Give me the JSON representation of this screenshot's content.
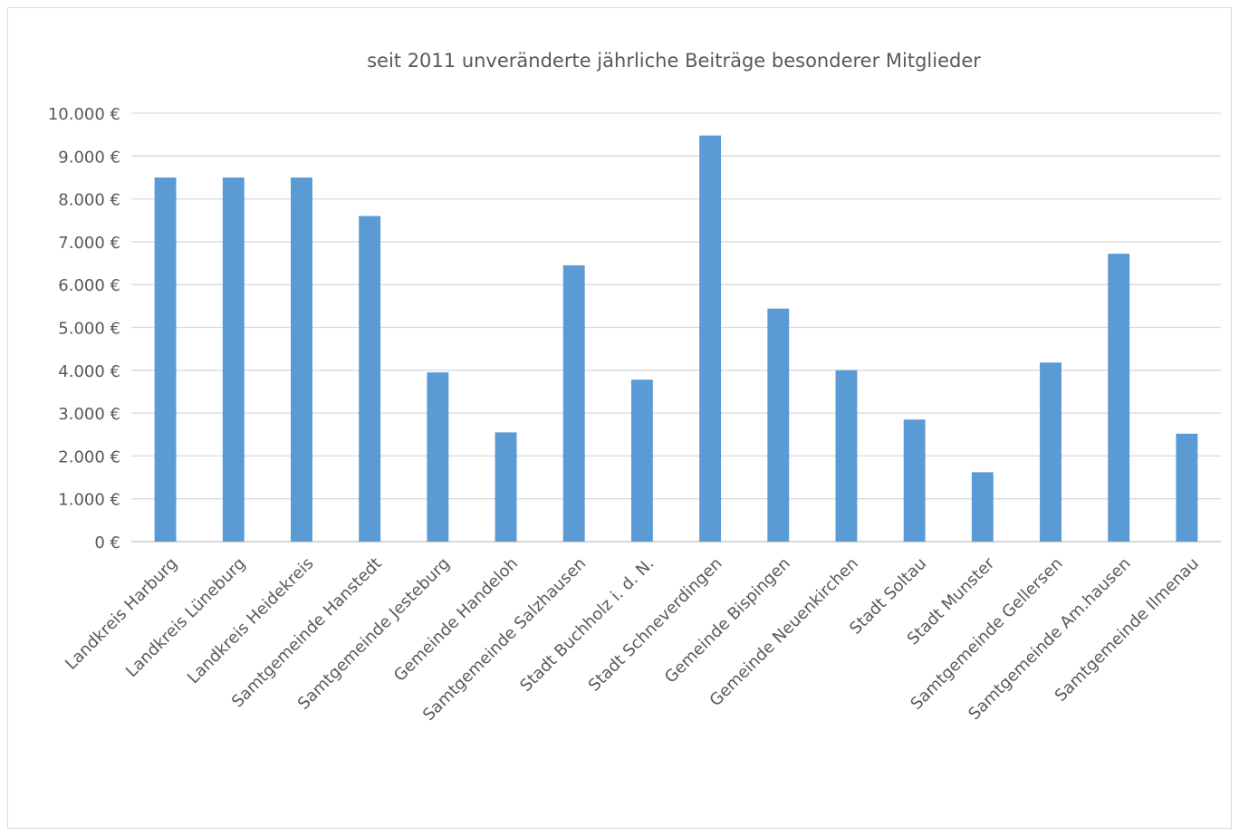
{
  "chart_data": {
    "type": "bar",
    "title": "seit 2011 unveränderte jährliche Beiträge besonderer Mitglieder",
    "xlabel": "",
    "ylabel": "",
    "ylim": [
      0,
      10000
    ],
    "yticks": [
      0,
      1000,
      2000,
      3000,
      4000,
      5000,
      6000,
      7000,
      8000,
      9000,
      10000
    ],
    "ytick_labels": [
      "0 €",
      "1.000 €",
      "2.000 €",
      "3.000 €",
      "4.000 €",
      "5.000 €",
      "6.000 €",
      "7.000 €",
      "8.000 €",
      "9.000 €",
      "10.000 €"
    ],
    "grid": true,
    "legend": "none",
    "bar_color": "#5b9bd5",
    "categories": [
      "Landkreis Harburg",
      "Landkreis Lüneburg",
      "Landkreis Heidekreis",
      "Samtgemeinde Hanstedt",
      "Samtgemeinde Jesteburg",
      "Gemeinde Handeloh",
      "Samtgemeinde Salzhausen",
      "Stadt Buchholz i. d. N.",
      "Stadt Schneverdingen",
      "Gemeinde Bispingen",
      "Gemeinde Neuenkirchen",
      "Stadt Soltau",
      "Stadt Munster",
      "Samtgemeinde Gellersen",
      "Samtgemeinde Am.hausen",
      "Samtgemeinde Ilmenau"
    ],
    "values": [
      8500,
      8500,
      8500,
      7600,
      3950,
      2550,
      6450,
      3780,
      9480,
      5440,
      4000,
      2850,
      1620,
      4180,
      6720,
      2520
    ]
  }
}
